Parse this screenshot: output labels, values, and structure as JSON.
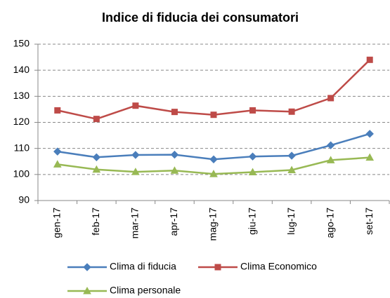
{
  "chart_data": {
    "type": "line",
    "title": "Indice di fiducia dei consumatori",
    "categories": [
      "gen-17",
      "feb-17",
      "mar-17",
      "apr-17",
      "mag-17",
      "giu-17",
      "lug-17",
      "ago-17",
      "set-17"
    ],
    "series": [
      {
        "name": "Clima di fiducia",
        "color": "#4a7ebb",
        "marker": "diamond",
        "values": [
          108.8,
          106.6,
          107.5,
          107.6,
          105.8,
          106.9,
          107.2,
          111.2,
          115.6
        ]
      },
      {
        "name": "Clima Economico",
        "color": "#be4b48",
        "marker": "square",
        "values": [
          124.6,
          121.3,
          126.4,
          124.0,
          122.9,
          124.6,
          124.1,
          129.3,
          144.0
        ]
      },
      {
        "name": "Clima personale",
        "color": "#98b954",
        "marker": "triangle",
        "values": [
          103.9,
          101.9,
          101.0,
          101.5,
          100.2,
          100.9,
          101.7,
          105.5,
          106.5
        ]
      }
    ],
    "ylim": [
      90,
      150
    ],
    "yticks": [
      90,
      100,
      110,
      120,
      130,
      140,
      150
    ],
    "grid": true,
    "legend": "bottom"
  }
}
